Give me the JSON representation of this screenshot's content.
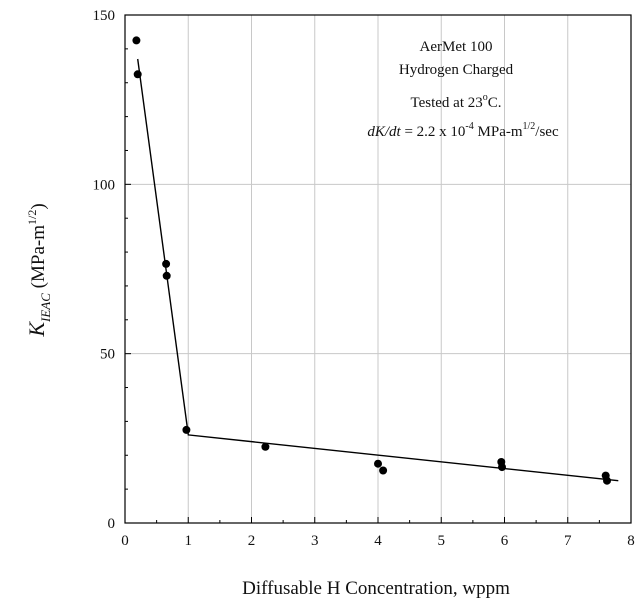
{
  "chart_data": {
    "type": "scatter",
    "title": "",
    "xlabel": "Diffusable H Concentration, wppm",
    "ylabel": {
      "main": "K",
      "sub": "IEAC",
      "unit_open": " (MPa-m",
      "unit_sup": "1/2",
      "unit_close": ")"
    },
    "xlim": [
      0,
      8
    ],
    "ylim": [
      0,
      150
    ],
    "xticks": [
      "0",
      "1",
      "2",
      "3",
      "4",
      "5",
      "6",
      "7",
      "8"
    ],
    "yticks": [
      "0",
      "50",
      "100",
      "150"
    ],
    "xtick_values": [
      0,
      1,
      2,
      3,
      4,
      5,
      6,
      7,
      8
    ],
    "ytick_values": [
      0,
      50,
      100,
      150
    ],
    "grid": true,
    "legend": "none",
    "annotations": {
      "line1": "AerMet 100",
      "line2": "Hydrogen Charged",
      "line3_main": "Tested at 23",
      "line3_sup": "o",
      "line3_tail": "C.",
      "line4_italic": "dK/dt",
      "line4_a": " = 2.2 x 10",
      "line4_exp": "-4",
      "line4_b": " MPa-m",
      "line4_exp2": "1/2",
      "line4_c": "/sec"
    },
    "series": [
      {
        "type": "scatter",
        "x": [
          0.18,
          0.2,
          0.65,
          0.66,
          0.97,
          2.22,
          4.0,
          4.08,
          5.95,
          5.96,
          7.6,
          7.62
        ],
        "y": [
          142.5,
          132.5,
          76.5,
          73,
          27.5,
          22.5,
          17.5,
          15.5,
          18,
          16.5,
          14,
          12.5
        ]
      },
      {
        "type": "line",
        "x": [
          0.2,
          1.0,
          7.8
        ],
        "y": [
          137,
          26,
          12.5
        ]
      }
    ],
    "colors": {
      "marks": "#000000",
      "grid": "#c8c8c8",
      "axis": "#000000"
    }
  }
}
